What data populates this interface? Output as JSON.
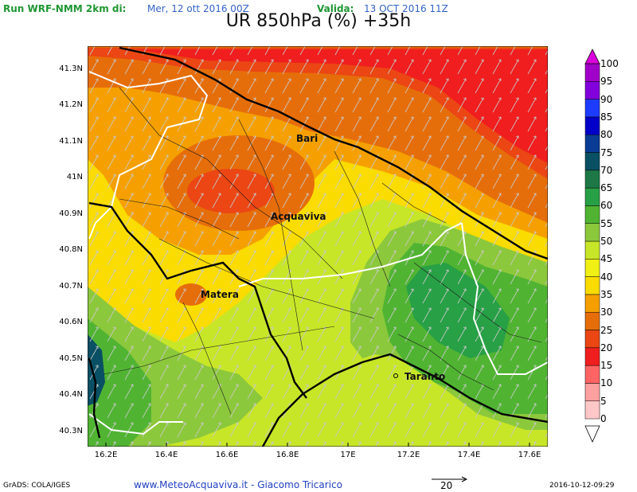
{
  "header": {
    "run_label": "Run WRF-NMM 2km di:",
    "run_date": "Mer, 12 ott 2016 00Z",
    "valid_label": "Valida:",
    "valid_date": "13 OCT 2016 11Z"
  },
  "title": "UR 850hPa (%) +35h",
  "lat_labels": [
    "41.3N",
    "41.2N",
    "41.1N",
    "41N",
    "40.9N",
    "40.8N",
    "40.7N",
    "40.6N",
    "40.5N",
    "40.4N",
    "40.3N"
  ],
  "lon_labels": [
    "16.2E",
    "16.4E",
    "16.6E",
    "16.8E",
    "17E",
    "17.2E",
    "17.4E",
    "17.6E"
  ],
  "cities": {
    "bari": "Bari",
    "acquaviva": "Acquaviva",
    "matera": "Matera",
    "taranto": "Taranto"
  },
  "legend": {
    "values": [
      "100",
      "95",
      "90",
      "85",
      "80",
      "75",
      "70",
      "65",
      "60",
      "55",
      "50",
      "45",
      "40",
      "35",
      "30",
      "25",
      "20",
      "15",
      "10",
      "5",
      "0"
    ],
    "colors": [
      "#a000c8",
      "#8200dc",
      "#1e3cff",
      "#0000c8",
      "#0a3c96",
      "#0a5064",
      "#1e7846",
      "#28a046",
      "#50b432",
      "#8cc83c",
      "#c8e628",
      "#f0f014",
      "#fadc00",
      "#f5a000",
      "#e66e0a",
      "#eb4614",
      "#f01e1e",
      "#ff6464",
      "#ffa0a0",
      "#ffc8c8"
    ],
    "top_color": "#dc00dc"
  },
  "footer": {
    "grads": "GrADS: COLA/IGES",
    "credit": "www.MeteoAcquaviva.it  -  Giacomo Tricarico",
    "vector_ref": "20",
    "timestamp": "2016-10-12-09:29"
  }
}
